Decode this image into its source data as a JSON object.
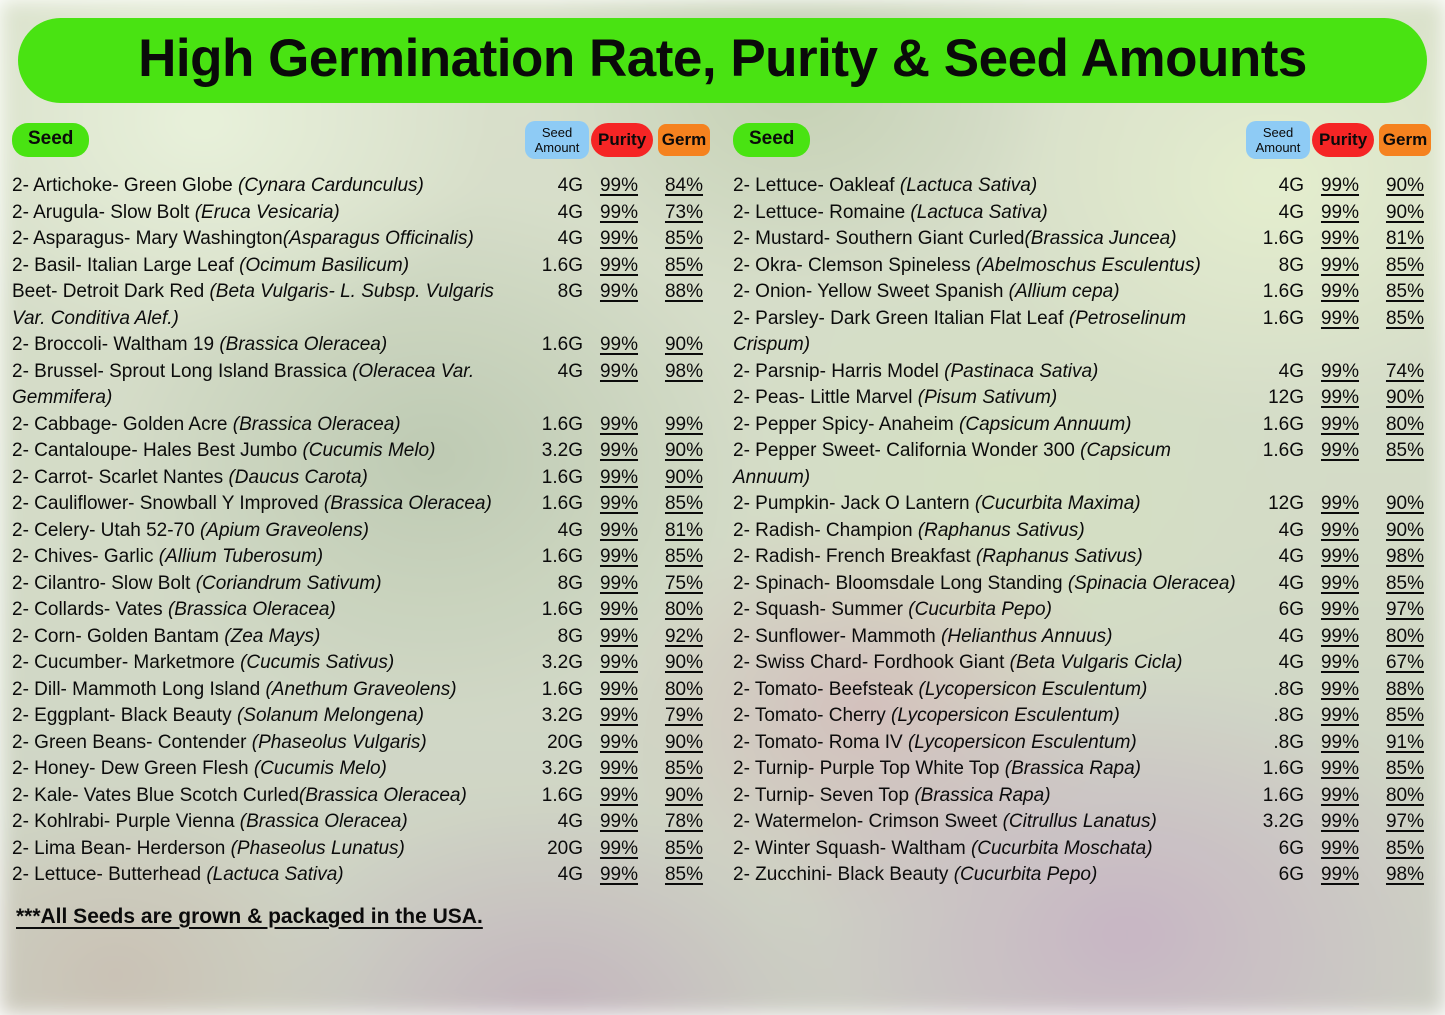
{
  "title": "High Germination Rate, Purity & Seed Amounts",
  "footer": "***All Seeds are grown & packaged in the USA. ",
  "colors": {
    "banner_green": "#49e312",
    "amount_blue": "#8ecbf5",
    "purity_red": "#f52525",
    "germ_orange": "#f5821f"
  },
  "columns": {
    "seed": "Seed",
    "amount": "Seed Amount",
    "purity": "Purity",
    "germ": "Germ"
  },
  "left_rows": [
    {
      "name": "2- Artichoke- Green Globe ",
      "latin": "(Cynara Cardunculus)",
      "amount": "4G",
      "purity": "99%",
      "germ": "84%"
    },
    {
      "name": "2- Arugula- Slow Bolt ",
      "latin": "(Eruca Vesicaria)",
      "amount": "4G",
      "purity": "99%",
      "germ": "73%"
    },
    {
      "name": "2- Asparagus- Mary Washington",
      "latin": "(Asparagus Officinalis)",
      "amount": "4G",
      "purity": "99%",
      "germ": "85%"
    },
    {
      "name": "2- Basil- Italian Large Leaf ",
      "latin": "(Ocimum Basilicum)",
      "amount": "1.6G",
      "purity": "99%",
      "germ": "85%"
    },
    {
      "name": "Beet- Detroit Dark Red ",
      "latin": "(Beta Vulgaris- L. Subsp. Vulgaris Var. Conditiva Alef.)",
      "amount": "8G",
      "purity": "99%",
      "germ": "88%"
    },
    {
      "name": "2- Broccoli- Waltham 19 ",
      "latin": "(Brassica Oleracea)",
      "amount": "1.6G",
      "purity": "99%",
      "germ": "90%"
    },
    {
      "name": "2- Brussel- Sprout Long Island Brassica ",
      "latin": "(Oleracea Var. Gemmifera)",
      "amount": "4G",
      "purity": "99%",
      "germ": "98%"
    },
    {
      "name": "2- Cabbage- Golden Acre ",
      "latin": "(Brassica Oleracea)",
      "amount": "1.6G",
      "purity": "99%",
      "germ": "99%"
    },
    {
      "name": "2- Cantaloupe- Hales Best Jumbo ",
      "latin": "(Cucumis Melo)",
      "amount": "3.2G",
      "purity": "99%",
      "germ": "90%"
    },
    {
      "name": "2- Carrot- Scarlet Nantes ",
      "latin": "(Daucus Carota)",
      "amount": "1.6G",
      "purity": "99%",
      "germ": "90%"
    },
    {
      "name": "2- Cauliflower- Snowball Y Improved ",
      "latin": "(Brassica Oleracea)",
      "amount": "1.6G",
      "purity": "99%",
      "germ": "85%"
    },
    {
      "name": "2- Celery- Utah 52-70 ",
      "latin": "(Apium Graveolens)",
      "amount": "4G",
      "purity": "99%",
      "germ": "81%"
    },
    {
      "name": "2- Chives- Garlic ",
      "latin": "(Allium Tuberosum)",
      "amount": "1.6G",
      "purity": "99%",
      "germ": "85%"
    },
    {
      "name": "2- Cilantro- Slow Bolt ",
      "latin": "(Coriandrum Sativum)",
      "amount": "8G",
      "purity": "99%",
      "germ": "75%"
    },
    {
      "name": "2- Collards- Vates ",
      "latin": "(Brassica Oleracea)",
      "amount": "1.6G",
      "purity": "99%",
      "germ": "80%"
    },
    {
      "name": "2- Corn- Golden Bantam ",
      "latin": "(Zea Mays)",
      "amount": "8G",
      "purity": "99%",
      "germ": "92%"
    },
    {
      "name": "2- Cucumber- Marketmore ",
      "latin": "(Cucumis Sativus)",
      "amount": "3.2G",
      "purity": "99%",
      "germ": "90%"
    },
    {
      "name": "2- Dill- Mammoth Long Island ",
      "latin": "(Anethum Graveolens)",
      "amount": "1.6G",
      "purity": "99%",
      "germ": "80%"
    },
    {
      "name": "2- Eggplant- Black Beauty ",
      "latin": "(Solanum Melongena)",
      "amount": "3.2G",
      "purity": "99%",
      "germ": "79%"
    },
    {
      "name": "2- Green Beans- Contender ",
      "latin": "(Phaseolus Vulgaris)",
      "amount": "20G",
      "purity": "99%",
      "germ": "90%"
    },
    {
      "name": "2- Honey- Dew Green Flesh ",
      "latin": "(Cucumis Melo)",
      "amount": "3.2G",
      "purity": "99%",
      "germ": "85%"
    },
    {
      "name": "2- Kale- Vates Blue Scotch Curled",
      "latin": "(Brassica Oleracea)",
      "amount": "1.6G",
      "purity": "99%",
      "germ": "90%"
    },
    {
      "name": "2- Kohlrabi- Purple Vienna ",
      "latin": "(Brassica Oleracea)",
      "amount": "4G",
      "purity": "99%",
      "germ": "78%"
    },
    {
      "name": "2- Lima Bean- Herderson ",
      "latin": "(Phaseolus Lunatus)",
      "amount": "20G",
      "purity": "99%",
      "germ": "85%"
    },
    {
      "name": "2- Lettuce- Butterhead ",
      "latin": "(Lactuca Sativa)",
      "amount": "4G",
      "purity": "99%",
      "germ": "85%"
    }
  ],
  "right_rows": [
    {
      "name": "2- Lettuce- Oakleaf ",
      "latin": "(Lactuca Sativa)",
      "amount": "4G",
      "purity": "99%",
      "germ": "90%"
    },
    {
      "name": "2- Lettuce- Romaine ",
      "latin": "(Lactuca Sativa)",
      "amount": "4G",
      "purity": "99%",
      "germ": "90%"
    },
    {
      "name": "2- Mustard-  Southern Giant Curled",
      "latin": "(Brassica Juncea)",
      "amount": "1.6G",
      "purity": "99%",
      "germ": "81%"
    },
    {
      "name": "2- Okra- Clemson Spineless ",
      "latin": "(Abelmoschus Esculentus)",
      "amount": "8G",
      "purity": "99%",
      "germ": "85%"
    },
    {
      "name": "2- Onion- Yellow Sweet Spanish ",
      "latin": "(Allium cepa)",
      "amount": "1.6G",
      "purity": "99%",
      "germ": "85%"
    },
    {
      "name": "2- Parsley- Dark Green Italian Flat Leaf ",
      "latin": "(Petroselinum Crispum)",
      "amount": "1.6G",
      "purity": "99%",
      "germ": "85%"
    },
    {
      "name": "2- Parsnip- Harris Model ",
      "latin": "(Pastinaca Sativa)",
      "amount": "4G",
      "purity": "99%",
      "germ": "74%"
    },
    {
      "name": "2- Peas- Little Marvel ",
      "latin": "(Pisum Sativum)",
      "amount": "12G",
      "purity": "99%",
      "germ": "90%"
    },
    {
      "name": "2- Pepper Spicy- Anaheim ",
      "latin": "(Capsicum Annuum)",
      "amount": "1.6G",
      "purity": "99%",
      "germ": "80%"
    },
    {
      "name": "2- Pepper Sweet- California Wonder 300 ",
      "latin": "(Capsicum Annuum)",
      "amount": "1.6G",
      "purity": "99%",
      "germ": "85%"
    },
    {
      "name": "2- Pumpkin- Jack O Lantern ",
      "latin": "(Cucurbita Maxima)",
      "amount": "12G",
      "purity": "99%",
      "germ": "90%"
    },
    {
      "name": "2- Radish- Champion ",
      "latin": "(Raphanus Sativus)",
      "amount": "4G",
      "purity": "99%",
      "germ": "90%"
    },
    {
      "name": "2- Radish- French Breakfast ",
      "latin": "(Raphanus Sativus)",
      "amount": "4G",
      "purity": "99%",
      "germ": "98%"
    },
    {
      "name": "2- Spinach- Bloomsdale Long Standing ",
      "latin": "(Spinacia Oleracea)",
      "amount": "4G",
      "purity": "99%",
      "germ": "85%"
    },
    {
      "name": "2- Squash- Summer ",
      "latin": "(Cucurbita Pepo)",
      "amount": "6G",
      "purity": "99%",
      "germ": "97%"
    },
    {
      "name": "2- Sunflower- Mammoth ",
      "latin": "(Helianthus Annuus)",
      "amount": "4G",
      "purity": "99%",
      "germ": "80%"
    },
    {
      "name": "2- Swiss Chard- Fordhook Giant ",
      "latin": "(Beta Vulgaris Cicla)",
      "amount": "4G",
      "purity": "99%",
      "germ": "67%"
    },
    {
      "name": "2- Tomato- Beefsteak ",
      "latin": "(Lycopersicon Esculentum)",
      "amount": ".8G",
      "purity": "99%",
      "germ": "88%"
    },
    {
      "name": "2- Tomato- Cherry ",
      "latin": "(Lycopersicon Esculentum)",
      "amount": ".8G",
      "purity": "99%",
      "germ": "85%"
    },
    {
      "name": "2- Tomato- Roma IV  ",
      "latin": "(Lycopersicon Esculentum)",
      "amount": ".8G",
      "purity": "99%",
      "germ": "91%"
    },
    {
      "name": "2- Turnip- Purple Top White Top ",
      "latin": "(Brassica Rapa)",
      "amount": "1.6G",
      "purity": "99%",
      "germ": "85%"
    },
    {
      "name": "2- Turnip- Seven Top ",
      "latin": "(Brassica Rapa)",
      "amount": "1.6G",
      "purity": "99%",
      "germ": "80%"
    },
    {
      "name": "2- Watermelon- Crimson Sweet ",
      "latin": "(Citrullus Lanatus)",
      "amount": "3.2G",
      "purity": "99%",
      "germ": "97%"
    },
    {
      "name": "2- Winter Squash- Waltham ",
      "latin": "(Cucurbita Moschata)",
      "amount": "6G",
      "purity": "99%",
      "germ": "85%"
    },
    {
      "name": "2- Zucchini-  Black Beauty ",
      "latin": "(Cucurbita Pepo)",
      "amount": "6G",
      "purity": "99%",
      "germ": "98%"
    }
  ]
}
